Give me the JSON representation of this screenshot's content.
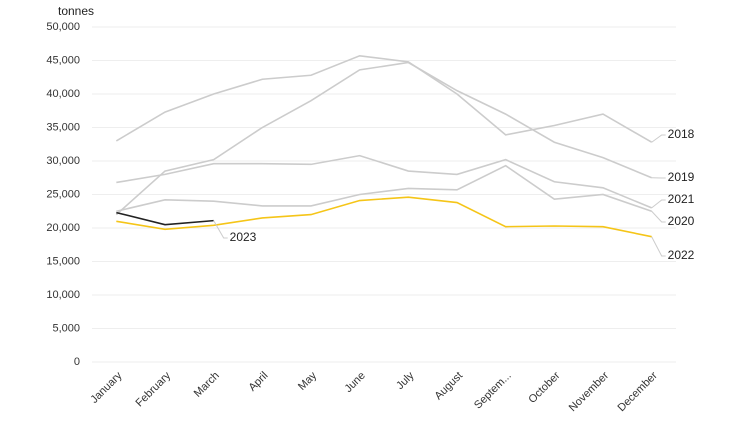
{
  "chart_data": {
    "type": "line",
    "y_label": "tonnes",
    "categories": [
      "January",
      "February",
      "March",
      "April",
      "May",
      "June",
      "July",
      "August",
      "Septem...",
      "October",
      "November",
      "December"
    ],
    "ylim": [
      0,
      50000
    ],
    "yticks": [
      0,
      {
        "value": 5000,
        "label": "5,000"
      },
      {
        "value": 10000,
        "label": "10,000"
      },
      {
        "value": 15000,
        "label": "15,000"
      },
      {
        "value": 20000,
        "label": "20,000"
      },
      {
        "value": 25000,
        "label": "25,000"
      },
      {
        "value": 30000,
        "label": "30,000"
      },
      {
        "value": 35000,
        "label": "35,000"
      },
      {
        "value": 40000,
        "label": "40,000"
      },
      {
        "value": 45000,
        "label": "45,000"
      },
      {
        "value": 50000,
        "label": "50,000"
      }
    ],
    "grid": true,
    "series": [
      {
        "name": "2018",
        "color": "#cccccc",
        "values": [
          33000,
          37300,
          40000,
          42200,
          42800,
          45700,
          44800,
          40000,
          33900,
          35300,
          37000,
          32800
        ]
      },
      {
        "name": "2019",
        "color": "#cccccc",
        "values": [
          22000,
          28500,
          30200,
          35000,
          39000,
          43600,
          44700,
          40500,
          37000,
          32800,
          30500,
          27500
        ]
      },
      {
        "name": "2021",
        "color": "#cccccc",
        "values": [
          26800,
          28000,
          29600,
          29600,
          29500,
          30800,
          28500,
          28000,
          30200,
          26900,
          26000,
          23000
        ]
      },
      {
        "name": "2020",
        "color": "#cccccc",
        "values": [
          22500,
          24200,
          24000,
          23300,
          23300,
          25000,
          25900,
          25700,
          29300,
          24300,
          25000,
          22500
        ]
      },
      {
        "name": "2022",
        "color": "#f5c518",
        "values": [
          21000,
          19800,
          20400,
          21500,
          22000,
          24100,
          24600,
          23800,
          20200,
          20300,
          20200,
          18700
        ]
      },
      {
        "name": "2023",
        "color": "#222222",
        "values": [
          22300,
          20500,
          21100,
          null,
          null,
          null,
          null,
          null,
          null,
          null,
          null,
          null
        ]
      }
    ]
  }
}
